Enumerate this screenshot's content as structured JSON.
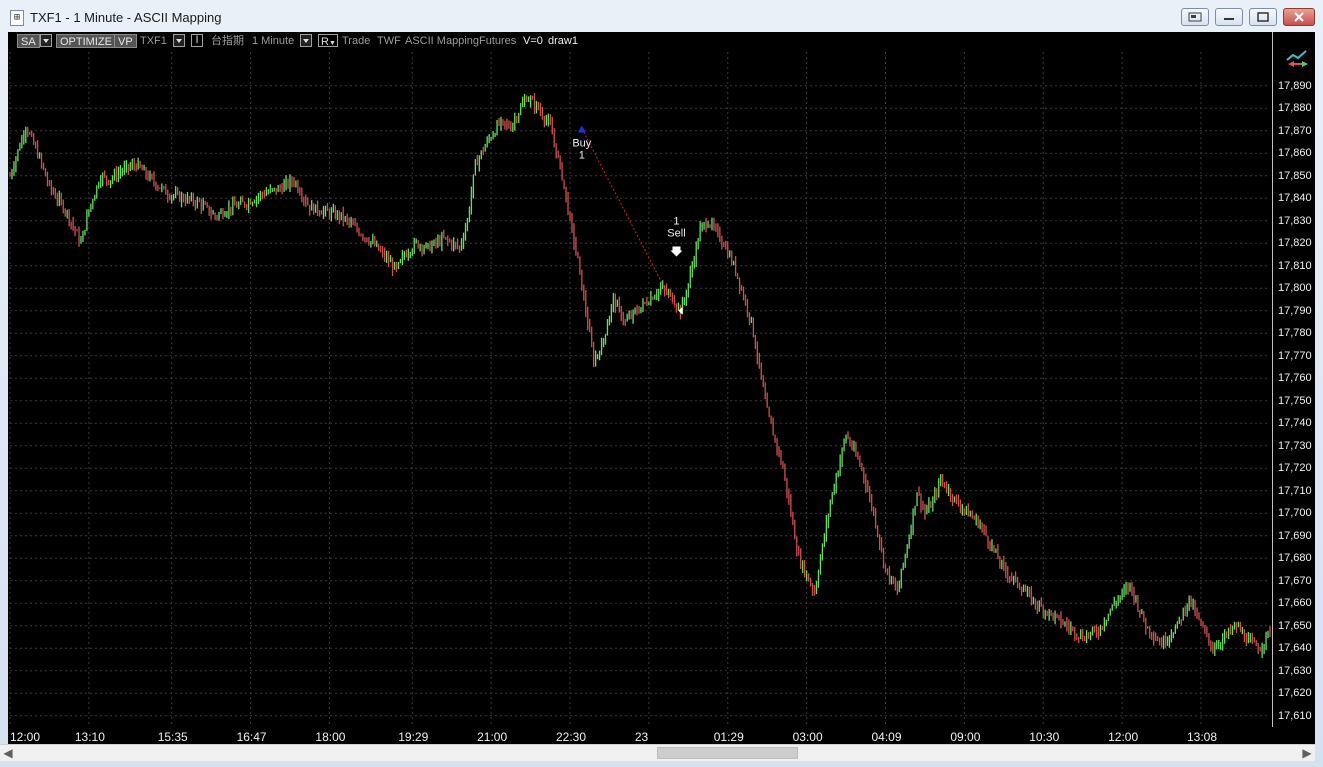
{
  "window": {
    "title": "TXF1 - 1 Minute - ASCII Mapping",
    "icon_name": "chart-app-icon"
  },
  "toolbar": {
    "sa_label": "SA",
    "optimize_label": "OPTIMIZE",
    "vp_label": "VP",
    "symbol": "TXF1",
    "interval_symbol_name": "台指期",
    "interval": "1 Minute",
    "r_label": "R",
    "data_type": "Trade",
    "exchange": "TWF",
    "mapping": "ASCII Mapping",
    "category": "Futures",
    "volume": "V=0",
    "drawing": "draw1"
  },
  "colors": {
    "background": "#000000",
    "up_candle": "#66e060",
    "down_candle": "#d05050",
    "grid": "#3a3a3a",
    "trade_line": "#d02020",
    "buy_marker": "#2030e0"
  },
  "chart_data": {
    "type": "line",
    "title": "",
    "xlabel": "",
    "ylabel": "",
    "ylim": [
      17605,
      17905
    ],
    "grid": true,
    "y_ticks": [
      17890,
      17880,
      17870,
      17860,
      17850,
      17840,
      17830,
      17820,
      17810,
      17800,
      17790,
      17780,
      17770,
      17760,
      17750,
      17740,
      17730,
      17720,
      17710,
      17700,
      17690,
      17680,
      17670,
      17660,
      17650,
      17640,
      17630,
      17620,
      17610
    ],
    "x_tick_labels": [
      "12:00",
      "13:10",
      "15:35",
      "16:47",
      "18:00",
      "19:29",
      "21:00",
      "22:30",
      "23",
      "01:29",
      "03:00",
      "04:09",
      "09:00",
      "10:30",
      "12:00",
      "13:08"
    ],
    "x_tick_index": [
      0,
      40,
      82,
      122,
      162,
      204,
      244,
      284,
      324,
      364,
      404,
      444,
      484,
      524,
      564,
      604
    ],
    "x_count": 640,
    "series": [
      {
        "x": [
          0,
          8,
          14,
          20,
          28,
          36,
          40,
          46,
          50,
          56,
          64,
          72,
          80,
          88,
          96,
          104,
          112,
          120,
          128,
          136,
          144,
          152,
          160,
          168,
          176,
          184,
          192,
          196,
          200,
          206,
          212,
          220,
          228,
          232,
          236,
          242,
          248,
          254,
          262,
          268,
          274,
          280,
          284,
          288,
          292,
          296,
          300,
          306,
          312,
          318,
          324,
          330,
          336,
          340,
          342,
          344,
          346,
          348,
          350,
          354,
          362,
          368,
          376,
          384,
          392,
          400,
          408,
          416,
          424,
          432,
          438,
          444,
          450,
          456,
          460,
          464,
          468,
          472,
          476,
          480,
          486,
          492,
          498,
          504,
          512,
          520,
          528,
          536,
          544,
          552,
          560,
          568,
          576,
          584,
          592,
          598,
          604,
          610,
          616,
          622,
          628,
          634,
          639
        ],
        "y": [
          17850,
          17872,
          17860,
          17845,
          17835,
          17820,
          17835,
          17850,
          17848,
          17852,
          17855,
          17848,
          17842,
          17840,
          17838,
          17832,
          17836,
          17838,
          17842,
          17844,
          17848,
          17836,
          17834,
          17832,
          17826,
          17820,
          17812,
          17808,
          17815,
          17820,
          17818,
          17822,
          17818,
          17830,
          17855,
          17865,
          17873,
          17872,
          17885,
          17880,
          17872,
          17850,
          17830,
          17812,
          17790,
          17768,
          17774,
          17795,
          17785,
          17790,
          17795,
          17800,
          17796,
          17790,
          17795,
          17802,
          17810,
          17818,
          17826,
          17830,
          17820,
          17808,
          17785,
          17745,
          17720,
          17680,
          17665,
          17705,
          17735,
          17720,
          17700,
          17675,
          17665,
          17690,
          17710,
          17700,
          17705,
          17715,
          17710,
          17705,
          17700,
          17695,
          17685,
          17675,
          17668,
          17660,
          17655,
          17650,
          17645,
          17648,
          17660,
          17668,
          17650,
          17642,
          17650,
          17662,
          17650,
          17640,
          17645,
          17650,
          17643,
          17640,
          17648
        ]
      }
    ],
    "trades": [
      {
        "label": "Buy",
        "qty": "1",
        "x": 290,
        "price": 17871
      },
      {
        "label": "Sell",
        "qty": "1",
        "x": 338,
        "price": 17790
      }
    ]
  }
}
